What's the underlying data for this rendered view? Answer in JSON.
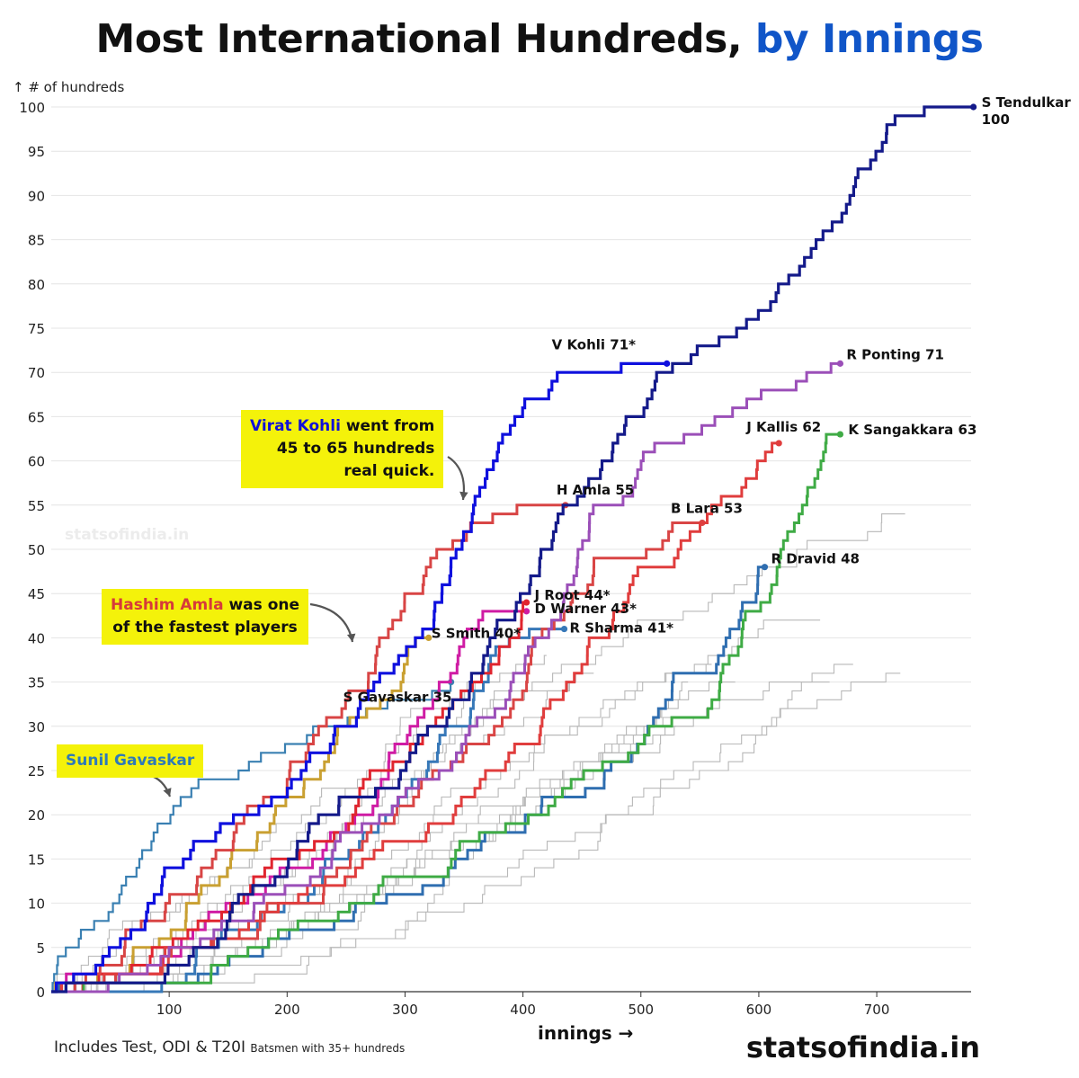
{
  "title_main": "Most International Hundreds, ",
  "title_accent": "by Innings",
  "colors": {
    "accent": "#1055c8",
    "highlight": "#f4f20a",
    "background_lines": "#b8b8b8"
  },
  "callouts": {
    "kohli": {
      "name": "Virat Kohli",
      "rest1": " went from",
      "line2": "45 to 65 hundreds",
      "line3": "real quick."
    },
    "amla": {
      "name": "Hashim Amla",
      "rest1": " was one",
      "line2": "of the fastest players"
    },
    "gavaskar": {
      "name": "Sunil Gavaskar"
    }
  },
  "watermark": "statsofindia.in",
  "footer": {
    "main": "Includes Test, ODI & T20I",
    "small": "Batsmen with 35+ hundreds"
  },
  "brand": "statsofindia.in",
  "chart_data": {
    "type": "line",
    "title": "Most International Hundreds, by Innings",
    "xlabel": "innings →",
    "ylabel": "↑ # of hundreds",
    "xlim": [
      0,
      780
    ],
    "ylim": [
      0,
      100
    ],
    "x_ticks": [
      100,
      200,
      300,
      400,
      500,
      600,
      700
    ],
    "y_ticks": [
      0,
      5,
      10,
      15,
      20,
      25,
      30,
      35,
      40,
      45,
      50,
      55,
      60,
      65,
      70,
      75,
      80,
      85,
      90,
      95,
      100
    ],
    "grid": "horizontal",
    "series": [
      {
        "name": "S Tendulkar",
        "label": "S Tendulkar",
        "label2": "100",
        "color": "#141a8a",
        "width": 3.2,
        "points": [
          [
            0,
            0
          ],
          [
            75,
            1
          ],
          [
            110,
            3
          ],
          [
            150,
            8
          ],
          [
            180,
            12
          ],
          [
            210,
            17
          ],
          [
            240,
            20
          ],
          [
            270,
            22
          ],
          [
            300,
            25
          ],
          [
            320,
            30
          ],
          [
            340,
            32
          ],
          [
            360,
            36
          ],
          [
            380,
            42
          ],
          [
            400,
            45
          ],
          [
            420,
            50
          ],
          [
            440,
            55
          ],
          [
            460,
            58
          ],
          [
            480,
            62
          ],
          [
            500,
            65
          ],
          [
            520,
            70
          ],
          [
            560,
            73
          ],
          [
            590,
            76
          ],
          [
            620,
            80
          ],
          [
            650,
            85
          ],
          [
            680,
            90
          ],
          [
            700,
            95
          ],
          [
            720,
            99
          ],
          [
            765,
            100
          ],
          [
            782,
            100
          ]
        ]
      },
      {
        "name": "V Kohli",
        "label": "V Kohli 71*",
        "color": "#0f10de",
        "width": 3.2,
        "points": [
          [
            0,
            0
          ],
          [
            40,
            3
          ],
          [
            80,
            8
          ],
          [
            110,
            14
          ],
          [
            140,
            18
          ],
          [
            170,
            20
          ],
          [
            200,
            22
          ],
          [
            230,
            27
          ],
          [
            260,
            31
          ],
          [
            290,
            36
          ],
          [
            310,
            40
          ],
          [
            330,
            44
          ],
          [
            345,
            50
          ],
          [
            360,
            56
          ],
          [
            380,
            62
          ],
          [
            400,
            66
          ],
          [
            430,
            70
          ],
          [
            480,
            70
          ],
          [
            522,
            71
          ]
        ]
      },
      {
        "name": "R Ponting",
        "label": "R Ponting 71",
        "color": "#9b4fb8",
        "width": 3.0,
        "points": [
          [
            0,
            0
          ],
          [
            80,
            2
          ],
          [
            130,
            6
          ],
          [
            180,
            10
          ],
          [
            230,
            14
          ],
          [
            280,
            20
          ],
          [
            330,
            25
          ],
          [
            380,
            32
          ],
          [
            420,
            40
          ],
          [
            450,
            50
          ],
          [
            480,
            55
          ],
          [
            510,
            61
          ],
          [
            550,
            63
          ],
          [
            600,
            67
          ],
          [
            650,
            70
          ],
          [
            669,
            71
          ]
        ]
      },
      {
        "name": "J Kallis",
        "label": "J Kallis 62",
        "color": "#e03d3d",
        "width": 3.0,
        "points": [
          [
            0,
            0
          ],
          [
            90,
            2
          ],
          [
            150,
            6
          ],
          [
            200,
            10
          ],
          [
            250,
            13
          ],
          [
            300,
            17
          ],
          [
            350,
            22
          ],
          [
            400,
            28
          ],
          [
            430,
            33
          ],
          [
            460,
            40
          ],
          [
            490,
            45
          ],
          [
            520,
            48
          ],
          [
            550,
            52
          ],
          [
            580,
            56
          ],
          [
            610,
            61
          ],
          [
            617,
            62
          ]
        ]
      },
      {
        "name": "K Sangakkara",
        "label": "K Sangakkara 63",
        "color": "#3fab45",
        "width": 3.0,
        "points": [
          [
            0,
            0
          ],
          [
            100,
            1
          ],
          [
            160,
            4
          ],
          [
            220,
            8
          ],
          [
            280,
            12
          ],
          [
            340,
            15
          ],
          [
            400,
            19
          ],
          [
            450,
            24
          ],
          [
            500,
            28
          ],
          [
            540,
            31
          ],
          [
            580,
            38
          ],
          [
            610,
            45
          ],
          [
            630,
            52
          ],
          [
            650,
            58
          ],
          [
            659,
            63
          ],
          [
            669,
            63
          ]
        ]
      },
      {
        "name": "R Dravid",
        "label": "R Dravid 48",
        "color": "#2f6eb0",
        "width": 3.0,
        "points": [
          [
            0,
            0
          ],
          [
            120,
            1
          ],
          [
            170,
            4
          ],
          [
            230,
            7
          ],
          [
            290,
            11
          ],
          [
            340,
            14
          ],
          [
            390,
            18
          ],
          [
            440,
            22
          ],
          [
            480,
            26
          ],
          [
            520,
            32
          ],
          [
            560,
            36
          ],
          [
            590,
            44
          ],
          [
            605,
            48
          ]
        ]
      },
      {
        "name": "H Amla",
        "label": "H Amla 55",
        "color": "#d84545",
        "width": 3.0,
        "points": [
          [
            0,
            0
          ],
          [
            50,
            3
          ],
          [
            100,
            10
          ],
          [
            140,
            16
          ],
          [
            180,
            22
          ],
          [
            220,
            28
          ],
          [
            250,
            33
          ],
          [
            280,
            40
          ],
          [
            300,
            45
          ],
          [
            320,
            48
          ],
          [
            350,
            51
          ],
          [
            380,
            54
          ],
          [
            420,
            55
          ],
          [
            436,
            55
          ]
        ]
      },
      {
        "name": "B Lara",
        "label": "B Lara 53",
        "color": "#d94545",
        "width": 3.0,
        "points": [
          [
            0,
            0
          ],
          [
            90,
            2
          ],
          [
            140,
            6
          ],
          [
            200,
            10
          ],
          [
            260,
            16
          ],
          [
            310,
            22
          ],
          [
            360,
            28
          ],
          [
            400,
            34
          ],
          [
            430,
            42
          ],
          [
            460,
            47
          ],
          [
            490,
            49
          ],
          [
            520,
            51
          ],
          [
            540,
            53
          ],
          [
            552,
            53
          ]
        ]
      },
      {
        "name": "J Root",
        "label": "J Root 44*",
        "color": "#e0252f",
        "width": 3.0,
        "points": [
          [
            0,
            0
          ],
          [
            70,
            3
          ],
          [
            120,
            7
          ],
          [
            170,
            12
          ],
          [
            220,
            16
          ],
          [
            260,
            21
          ],
          [
            300,
            26
          ],
          [
            340,
            32
          ],
          [
            370,
            36
          ],
          [
            390,
            40
          ],
          [
            403,
            44
          ]
        ]
      },
      {
        "name": "D Warner",
        "label": "D Warner 43*",
        "color": "#cf1ca4",
        "width": 3.0,
        "points": [
          [
            0,
            0
          ],
          [
            80,
            2
          ],
          [
            120,
            6
          ],
          [
            160,
            10
          ],
          [
            200,
            14
          ],
          [
            240,
            18
          ],
          [
            280,
            24
          ],
          [
            310,
            30
          ],
          [
            330,
            35
          ],
          [
            350,
            40
          ],
          [
            380,
            43
          ],
          [
            403,
            43
          ]
        ]
      },
      {
        "name": "R Sharma",
        "label": "R Sharma 41*",
        "color": "#3778b8",
        "width": 3.0,
        "points": [
          [
            0,
            0
          ],
          [
            100,
            1
          ],
          [
            140,
            5
          ],
          [
            190,
            9
          ],
          [
            230,
            13
          ],
          [
            270,
            18
          ],
          [
            310,
            24
          ],
          [
            340,
            30
          ],
          [
            370,
            35
          ],
          [
            390,
            40
          ],
          [
            420,
            41
          ],
          [
            435,
            41
          ]
        ]
      },
      {
        "name": "S Smith",
        "label": "S Smith 40*",
        "color": "#c9a032",
        "width": 3.0,
        "points": [
          [
            0,
            0
          ],
          [
            55,
            2
          ],
          [
            90,
            5
          ],
          [
            120,
            10
          ],
          [
            160,
            16
          ],
          [
            200,
            22
          ],
          [
            240,
            27
          ],
          [
            270,
            32
          ],
          [
            300,
            37
          ],
          [
            320,
            40
          ]
        ]
      },
      {
        "name": "S Gavaskar",
        "label": "S Gavaskar 35",
        "color": "#3a80b2",
        "width": 2.2,
        "points": [
          [
            0,
            0
          ],
          [
            10,
            4
          ],
          [
            40,
            8
          ],
          [
            70,
            13
          ],
          [
            100,
            19
          ],
          [
            120,
            23
          ],
          [
            160,
            25
          ],
          [
            200,
            28
          ],
          [
            240,
            30
          ],
          [
            280,
            32
          ],
          [
            310,
            33
          ],
          [
            339,
            35
          ]
        ]
      }
    ],
    "annotations": [
      {
        "text": "statsofindia.in",
        "type": "watermark"
      }
    ]
  }
}
